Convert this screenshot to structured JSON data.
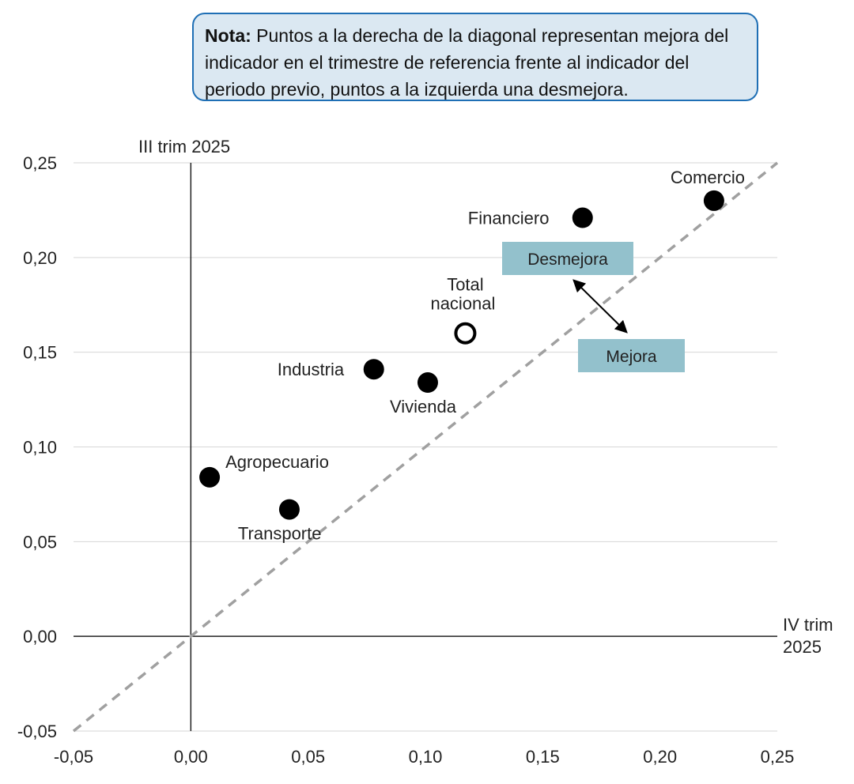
{
  "note": {
    "label": "Nota:",
    "text": " Puntos a la derecha de la diagonal representan mejora del indicador en el trimestre de referencia frente al indicador del periodo previo, puntos a la izquierda una desmejora."
  },
  "chart_data": {
    "type": "scatter",
    "xlabel": "IV trim 2025",
    "ylabel": "III trim 2025",
    "xlim": [
      -0.05,
      0.25
    ],
    "ylim": [
      -0.05,
      0.25
    ],
    "xticks": [
      "-0,05",
      "0,00",
      "0,05",
      "0,10",
      "0,15",
      "0,20",
      "0,25"
    ],
    "yticks": [
      "-0,05",
      "0,00",
      "0,05",
      "0,10",
      "0,15",
      "0,20",
      "0,25"
    ],
    "grid": "horizontal",
    "diagonal": {
      "style": "dashed",
      "color": "#a0a0a0"
    },
    "points": [
      {
        "name": "Comercio",
        "x": 0.223,
        "y": 0.23,
        "filled": true
      },
      {
        "name": "Financiero",
        "x": 0.167,
        "y": 0.221,
        "filled": true
      },
      {
        "name": "Total nacional",
        "x": 0.117,
        "y": 0.16,
        "filled": false
      },
      {
        "name": "Industria",
        "x": 0.078,
        "y": 0.141,
        "filled": true
      },
      {
        "name": "Vivienda",
        "x": 0.101,
        "y": 0.134,
        "filled": true
      },
      {
        "name": "Agropecuario",
        "x": 0.008,
        "y": 0.084,
        "filled": true
      },
      {
        "name": "Transporte",
        "x": 0.042,
        "y": 0.067,
        "filled": true
      }
    ],
    "annotations": [
      {
        "text": "Desmejora",
        "color": "#93c1cc"
      },
      {
        "text": "Mejora",
        "color": "#93c1cc"
      }
    ]
  }
}
